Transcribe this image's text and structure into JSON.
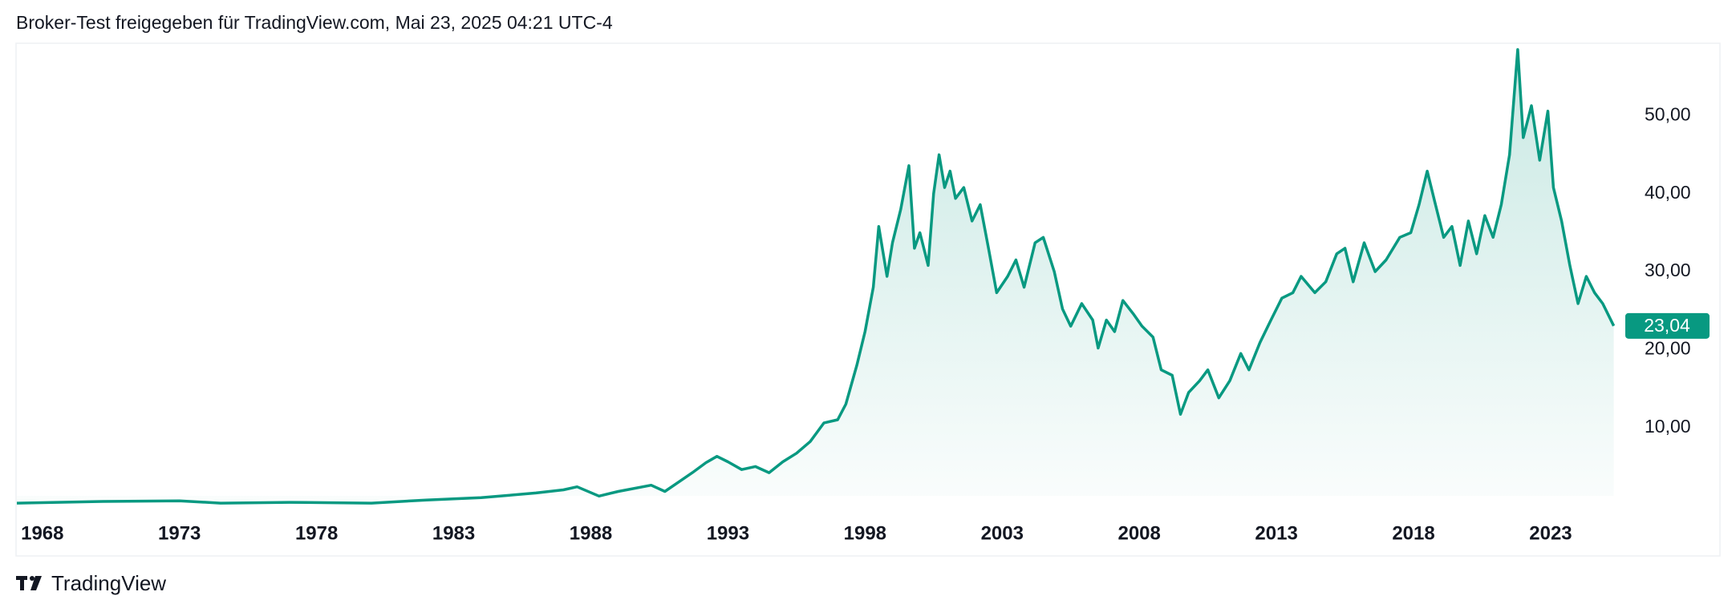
{
  "header": "Broker-Test freigegeben für TradingView.com, Mai 23, 2025 04:21 UTC-4",
  "footer": "TradingView",
  "chart_data": {
    "type": "area",
    "color": "#089981",
    "grid": false,
    "xlim": [
      1967.07,
      2025.4
    ],
    "xticks": [
      1968,
      1973,
      1978,
      1983,
      1988,
      1993,
      1998,
      2003,
      2008,
      2013,
      2018,
      2023
    ],
    "ylim": [
      0,
      59
    ],
    "yticks": [
      {
        "value": 10,
        "label": "10,00"
      },
      {
        "value": 20,
        "label": "20,00"
      },
      {
        "value": 30,
        "label": "30,00"
      },
      {
        "value": 40,
        "label": "40,00"
      },
      {
        "value": 50,
        "label": "50,00"
      }
    ],
    "last_price": {
      "value": 23.04,
      "label": "23,04"
    },
    "x": [
      1967.07,
      1970,
      1973,
      1974.5,
      1977,
      1980,
      1982,
      1984,
      1985,
      1986,
      1987,
      1987.5,
      1988.3,
      1989,
      1990.2,
      1990.7,
      1991.2,
      1991.7,
      1992.2,
      1992.6,
      1993.0,
      1993.5,
      1994,
      1994.5,
      1995,
      1995.5,
      1996,
      1996.5,
      1997,
      1997.3,
      1997.7,
      1998,
      1998.3,
      1998.5,
      1998.8,
      1999,
      1999.3,
      1999.6,
      1999.8,
      2000,
      2000.3,
      2000.5,
      2000.7,
      2000.9,
      2001.1,
      2001.3,
      2001.6,
      2001.9,
      2002.2,
      2002.5,
      2002.8,
      2003.2,
      2003.5,
      2003.8,
      2004.2,
      2004.5,
      2004.9,
      2005.2,
      2005.5,
      2005.9,
      2006.3,
      2006.5,
      2006.8,
      2007.1,
      2007.4,
      2007.8,
      2008.1,
      2008.5,
      2008.8,
      2009.2,
      2009.5,
      2009.8,
      2010.2,
      2010.5,
      2010.9,
      2011.3,
      2011.7,
      2012,
      2012.4,
      2012.8,
      2013.2,
      2013.6,
      2013.9,
      2014.4,
      2014.8,
      2015.2,
      2015.5,
      2015.8,
      2016.2,
      2016.6,
      2017,
      2017.5,
      2017.9,
      2018.2,
      2018.5,
      2018.8,
      2019.1,
      2019.4,
      2019.7,
      2020,
      2020.3,
      2020.6,
      2020.9,
      2021.2,
      2021.5,
      2021.8,
      2022,
      2022.3,
      2022.6,
      2022.9,
      2023.1,
      2023.4,
      2023.7,
      2024,
      2024.3,
      2024.6,
      2024.9,
      2025.3
    ],
    "values": [
      0.3,
      0.5,
      0.6,
      0.3,
      0.4,
      0.3,
      0.7,
      1.0,
      1.3,
      1.6,
      2.0,
      2.4,
      1.2,
      1.8,
      2.6,
      1.8,
      3.0,
      4.2,
      5.5,
      6.3,
      5.6,
      4.6,
      5.0,
      4.2,
      5.6,
      6.7,
      8.2,
      10.6,
      11,
      13,
      18,
      22.3,
      28,
      35.8,
      29.4,
      33.7,
      38,
      43.6,
      33,
      35,
      30.8,
      40,
      45,
      40.8,
      42.9,
      39.4,
      40.8,
      36.5,
      38.6,
      33,
      27.3,
      29.4,
      31.5,
      28,
      33.7,
      34.4,
      30,
      25.2,
      23,
      25.9,
      23.8,
      20.2,
      23.8,
      22.3,
      26.3,
      24.5,
      23,
      21.6,
      17.4,
      16.7,
      11.7,
      14.5,
      16,
      17.4,
      13.8,
      16,
      19.5,
      17.4,
      20.9,
      23.8,
      26.6,
      27.3,
      29.4,
      27.3,
      28.7,
      32.3,
      33,
      28.7,
      33.7,
      30,
      31.5,
      34.4,
      35,
      38.6,
      42.9,
      38.6,
      34.4,
      35.8,
      30.8,
      36.5,
      32.3,
      37.2,
      34.4,
      38.6,
      45,
      58.5,
      47.2,
      51.3,
      44.3,
      50.6,
      40.8,
      36.5,
      30.8,
      25.9,
      29.4,
      27.3,
      25.9,
      23.04
    ]
  }
}
